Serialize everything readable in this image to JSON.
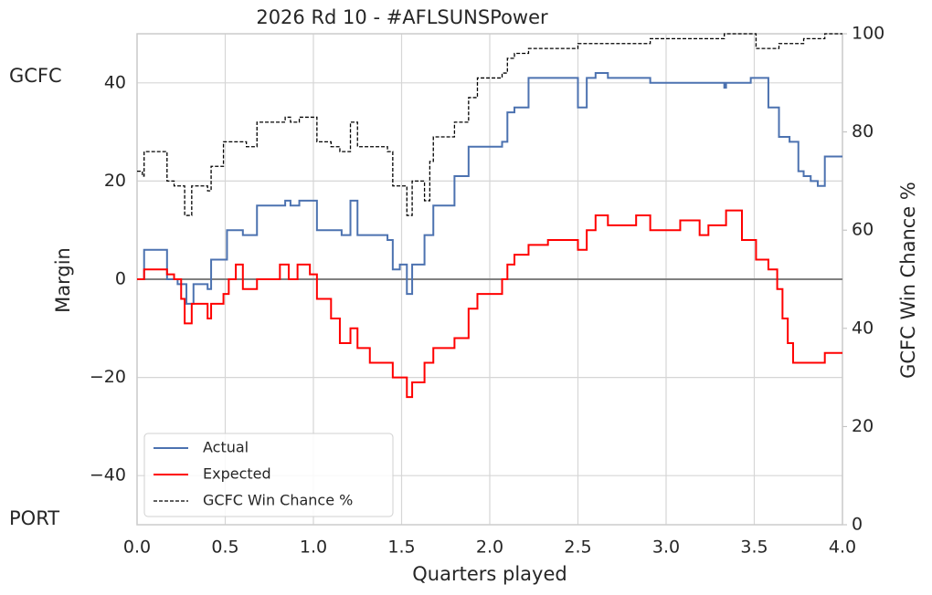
{
  "chart_data": {
    "type": "step",
    "title": "2026 Rd 10 - #AFLSUNSPower",
    "xlabel": "Quarters played",
    "ylabel": "Margin",
    "y2label": "GCFC Win Chance %",
    "annotations": [
      "GCFC",
      "PORT"
    ],
    "xlim": [
      0,
      4
    ],
    "ylim": [
      -50,
      50
    ],
    "y2lim": [
      0,
      100
    ],
    "xticks": [
      {
        "value": 0,
        "label": "0.0"
      },
      0.5,
      {
        "value": 1,
        "label": "1.0"
      },
      1.5,
      {
        "value": 2,
        "label": "2.0"
      },
      2.5,
      {
        "value": 3,
        "label": "3.0"
      },
      3.5,
      {
        "value": 4,
        "label": "4.0"
      }
    ],
    "yticks": [
      {
        "value": -40,
        "label": "−40"
      },
      {
        "value": -20,
        "label": "−20"
      },
      0,
      20,
      40
    ],
    "y2ticks": [
      0,
      20,
      40,
      60,
      80,
      100
    ],
    "grid": true,
    "hline": 0,
    "legend": "lower left",
    "series": [
      {
        "name": "Actual",
        "color": "#4c72b0",
        "dash": false,
        "x": [
          0,
          0.04,
          0.17,
          0.23,
          0.28,
          0.32,
          0.4,
          0.42,
          0.51,
          0.6,
          0.68,
          0.84,
          0.87,
          0.92,
          1.02,
          1.16,
          1.21,
          1.25,
          1.42,
          1.45,
          1.49,
          1.53,
          1.56,
          1.63,
          1.68,
          1.8,
          1.88,
          2.07,
          2.1,
          2.14,
          2.22,
          2.5,
          2.55,
          2.6,
          2.67,
          2.91,
          3.33,
          3.34,
          3.48,
          3.58,
          3.64,
          3.7,
          3.75,
          3.78,
          3.82,
          3.86,
          3.9,
          4.0
        ],
        "values": [
          0,
          6,
          0,
          -1,
          -5,
          -1,
          -2,
          4,
          10,
          9,
          15,
          16,
          15,
          16,
          10,
          9,
          16,
          9,
          8,
          2,
          3,
          -3,
          3,
          9,
          15,
          21,
          27,
          28,
          34,
          35,
          41,
          35,
          41,
          42,
          41,
          40,
          39,
          40,
          41,
          35,
          29,
          28,
          22,
          21,
          20,
          19,
          25,
          25
        ]
      },
      {
        "name": "Expected",
        "color": "#ff0000",
        "dash": false,
        "x": [
          0,
          0.04,
          0.17,
          0.21,
          0.25,
          0.27,
          0.31,
          0.37,
          0.4,
          0.42,
          0.49,
          0.52,
          0.56,
          0.6,
          0.68,
          0.81,
          0.86,
          0.91,
          0.98,
          1.02,
          1.1,
          1.15,
          1.21,
          1.25,
          1.32,
          1.45,
          1.53,
          1.56,
          1.63,
          1.68,
          1.8,
          1.88,
          1.93,
          2.07,
          2.1,
          2.14,
          2.22,
          2.33,
          2.5,
          2.55,
          2.6,
          2.67,
          2.83,
          2.91,
          3.08,
          3.19,
          3.24,
          3.34,
          3.43,
          3.51,
          3.58,
          3.63,
          3.66,
          3.69,
          3.72,
          3.9,
          4.0
        ],
        "values": [
          0,
          2,
          1,
          0,
          -4,
          -9,
          -5,
          -5,
          -8,
          -5,
          -3,
          0,
          3,
          -2,
          0,
          3,
          0,
          3,
          1,
          -4,
          -8,
          -13,
          -10,
          -14,
          -17,
          -20,
          -24,
          -21,
          -17,
          -14,
          -12,
          -6,
          -3,
          0,
          3,
          5,
          7,
          8,
          6,
          10,
          13,
          11,
          13,
          10,
          12,
          9,
          11,
          14,
          8,
          4,
          2,
          -2,
          -8,
          -13,
          -17,
          -15,
          -15
        ]
      },
      {
        "name": "GCFC Win Chance %",
        "color": "#000000",
        "dash": true,
        "axis": "y2",
        "x": [
          0,
          0.03,
          0.04,
          0.17,
          0.21,
          0.27,
          0.31,
          0.4,
          0.42,
          0.49,
          0.62,
          0.68,
          0.84,
          0.87,
          0.92,
          1.02,
          1.1,
          1.15,
          1.21,
          1.25,
          1.42,
          1.45,
          1.53,
          1.56,
          1.63,
          1.66,
          1.68,
          1.8,
          1.88,
          1.93,
          2.07,
          2.1,
          2.14,
          2.22,
          2.5,
          2.91,
          3.33,
          3.51,
          3.64,
          3.78,
          3.9,
          4.0
        ],
        "values": [
          72,
          71,
          76,
          70,
          69,
          63,
          69,
          68,
          73,
          78,
          77,
          82,
          83,
          82,
          83,
          78,
          77,
          76,
          82,
          77,
          76,
          69,
          63,
          70,
          66,
          74,
          79,
          82,
          87,
          91,
          92,
          95,
          96,
          97,
          98,
          99,
          100,
          97,
          98,
          99,
          100,
          100
        ]
      }
    ]
  }
}
